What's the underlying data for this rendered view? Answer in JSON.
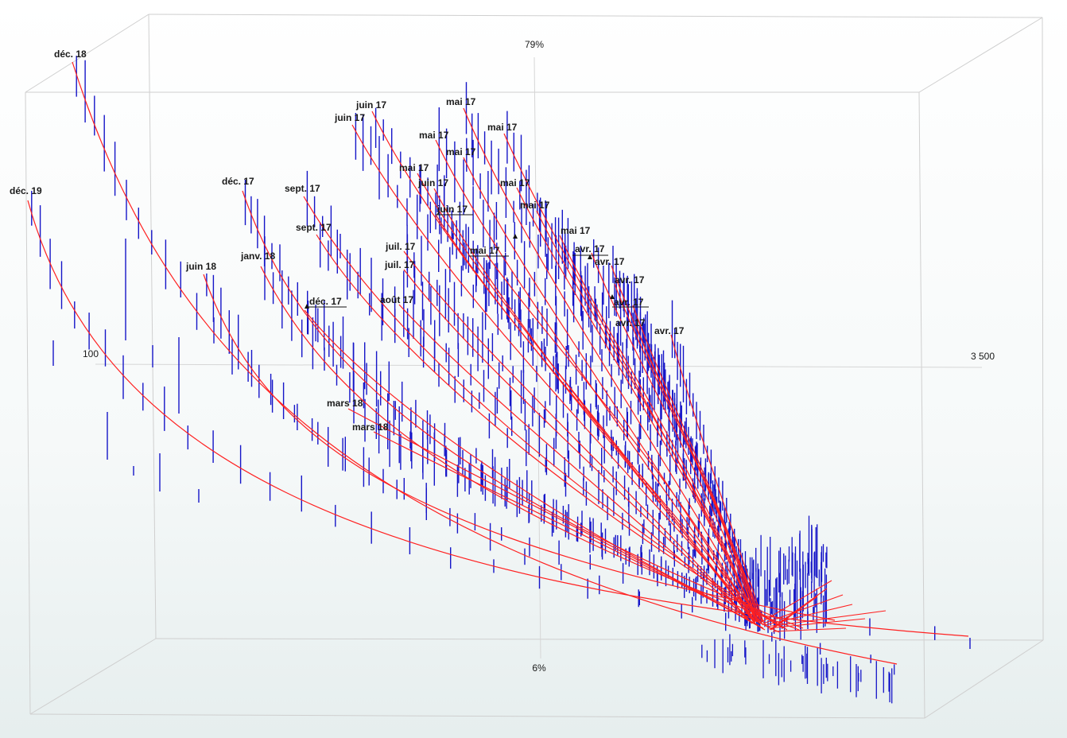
{
  "chart_data": {
    "type": "line",
    "projection": "3d",
    "axis_labels": {
      "y_top": "79%",
      "y_bottom": "6%",
      "x_left": "100",
      "x_right": "3 500"
    },
    "grid": false,
    "colors": {
      "curves": "#ff2020",
      "sticks": "#1515c8",
      "box": "#cfcfcf",
      "axes": "#d6d6d6"
    },
    "series": [
      {
        "name": "déc. 18"
      },
      {
        "name": "déc. 19"
      },
      {
        "name": "juin 18"
      },
      {
        "name": "déc. 17"
      },
      {
        "name": "janv. 18"
      },
      {
        "name": "sept. 17"
      },
      {
        "name": "sept. 17"
      },
      {
        "name": "déc. 17"
      },
      {
        "name": "juin 17"
      },
      {
        "name": "juin 17"
      },
      {
        "name": "mai 17"
      },
      {
        "name": "mai 17"
      },
      {
        "name": "mai 17"
      },
      {
        "name": "mai 17"
      },
      {
        "name": "juin 17"
      },
      {
        "name": "juin 17"
      },
      {
        "name": "mai 17"
      },
      {
        "name": "mai 17"
      },
      {
        "name": "mai 17"
      },
      {
        "name": "juil. 17"
      },
      {
        "name": "juil. 17"
      },
      {
        "name": "août 17"
      },
      {
        "name": "mai 17"
      },
      {
        "name": "mai 17"
      },
      {
        "name": "avr. 17"
      },
      {
        "name": "avr. 17"
      },
      {
        "name": "avr. 17"
      },
      {
        "name": "avr. 17"
      },
      {
        "name": "avr. 17"
      },
      {
        "name": "avr. 17"
      },
      {
        "name": "mars 18"
      },
      {
        "name": "mars 18"
      }
    ]
  }
}
